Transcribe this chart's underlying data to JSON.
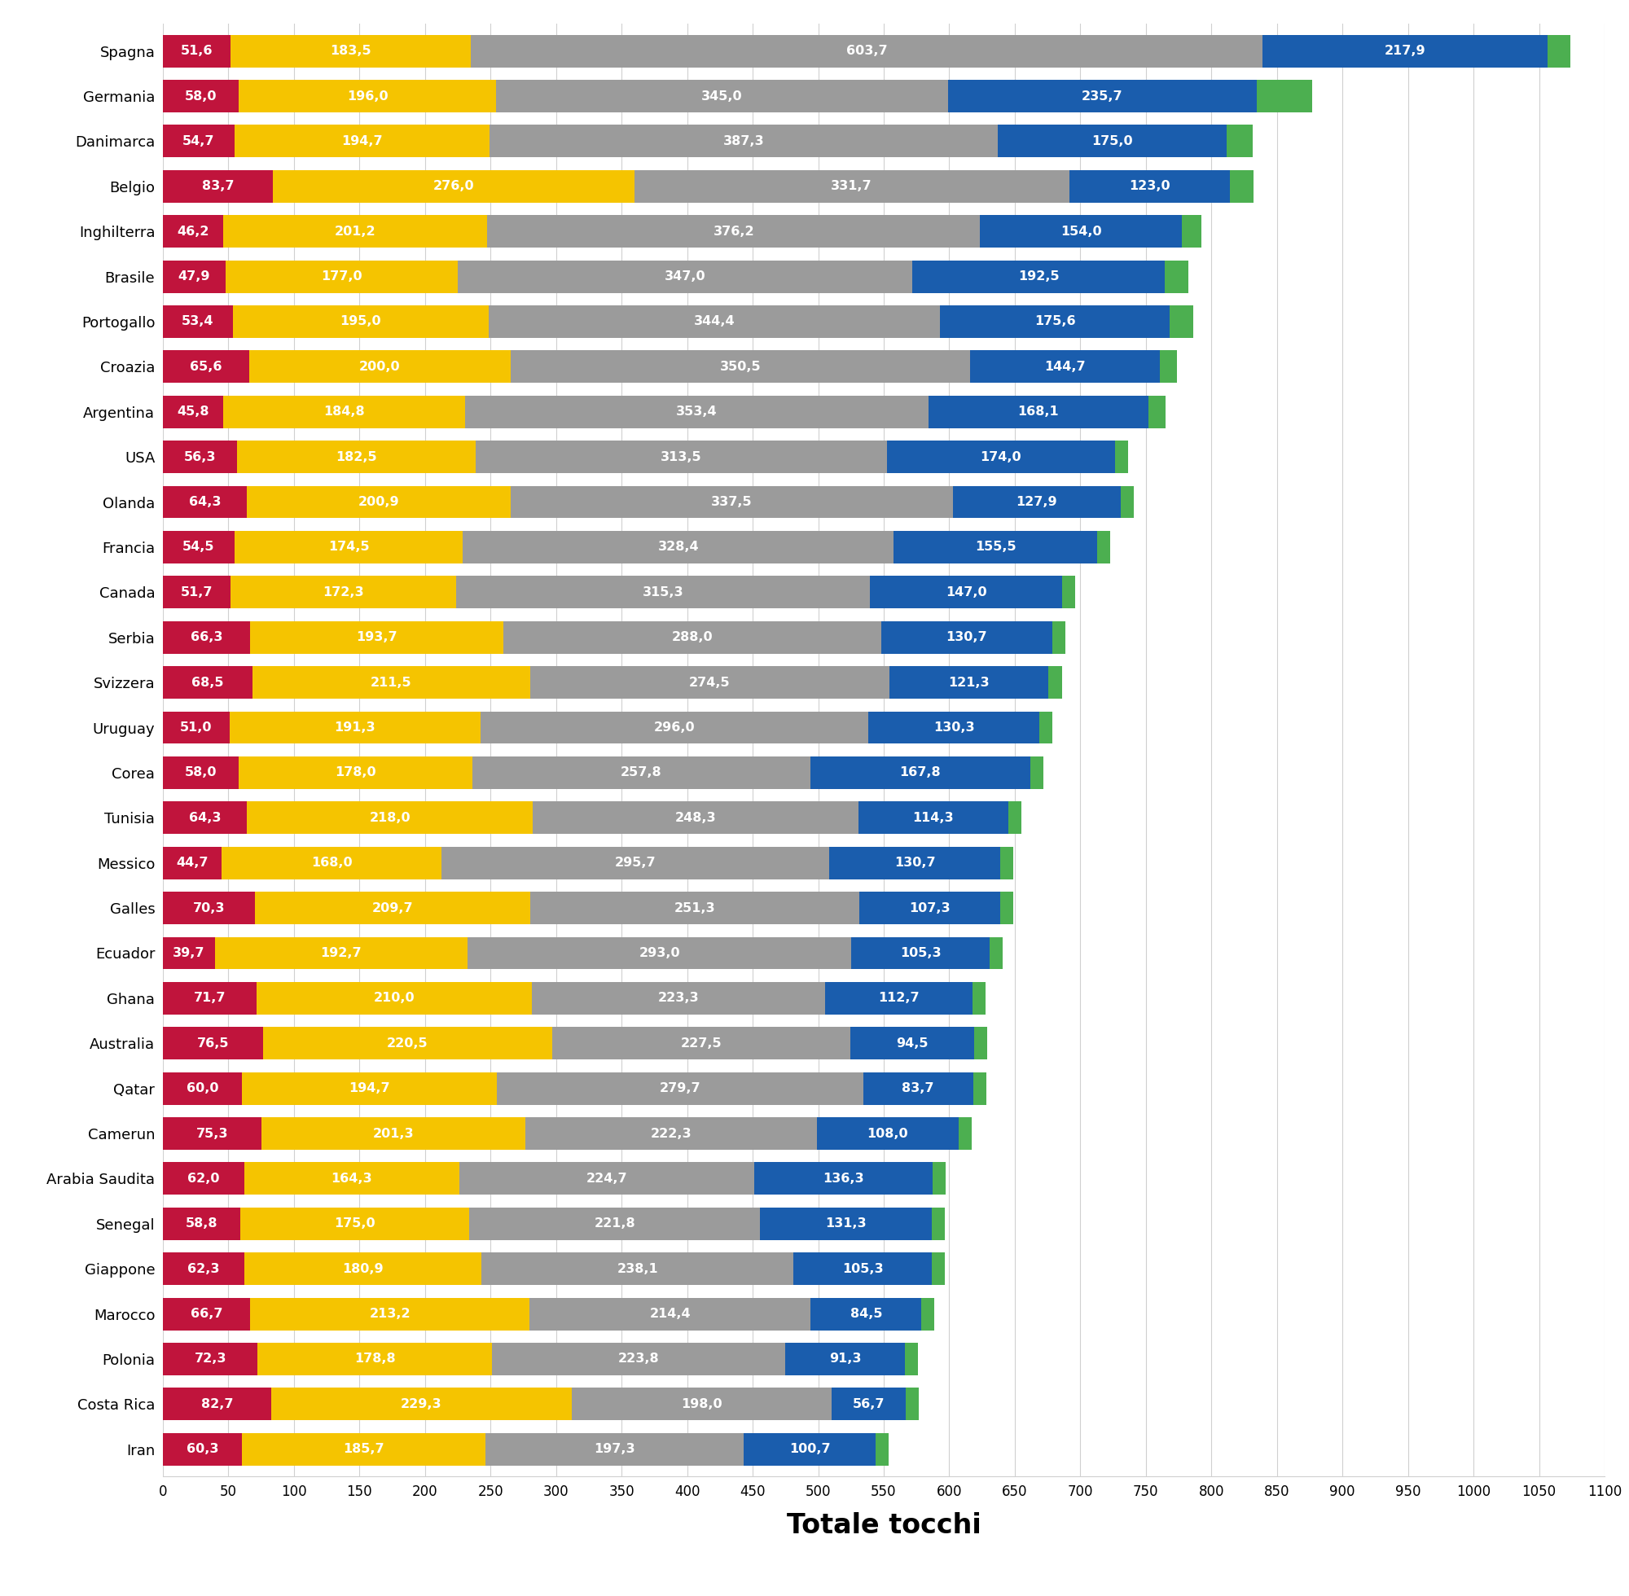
{
  "teams": [
    "Spagna",
    "Germania",
    "Danimarca",
    "Belgio",
    "Inghilterra",
    "Brasile",
    "Portogallo",
    "Croazia",
    "Argentina",
    "USA",
    "Olanda",
    "Francia",
    "Canada",
    "Serbia",
    "Svizzera",
    "Uruguay",
    "Corea",
    "Tunisia",
    "Messico",
    "Galles",
    "Ecuador",
    "Ghana",
    "Australia",
    "Qatar",
    "Camerun",
    "Arabia Saudita",
    "Senegal",
    "Giappone",
    "Marocco",
    "Polonia",
    "Costa Rica",
    "Iran"
  ],
  "red": [
    51.6,
    58.0,
    54.7,
    83.7,
    46.2,
    47.9,
    53.4,
    65.6,
    45.8,
    56.3,
    64.3,
    54.5,
    51.7,
    66.3,
    68.5,
    51.0,
    58.0,
    64.3,
    44.7,
    70.3,
    39.7,
    71.7,
    76.5,
    60.0,
    75.3,
    62.0,
    58.8,
    62.3,
    66.7,
    72.3,
    82.7,
    60.3
  ],
  "yellow": [
    183.5,
    196.0,
    194.7,
    276.0,
    201.2,
    177.0,
    195.0,
    200.0,
    184.8,
    182.5,
    200.9,
    174.5,
    172.3,
    193.7,
    211.5,
    191.3,
    178.0,
    218.0,
    168.0,
    209.7,
    192.7,
    210.0,
    220.5,
    194.7,
    201.3,
    164.3,
    175.0,
    180.9,
    213.2,
    178.8,
    229.3,
    185.7
  ],
  "gray": [
    603.7,
    345.0,
    387.3,
    331.7,
    376.2,
    347.0,
    344.4,
    350.5,
    353.4,
    313.5,
    337.5,
    328.4,
    315.3,
    288.0,
    274.5,
    296.0,
    257.8,
    248.3,
    295.7,
    251.3,
    293.0,
    223.3,
    227.5,
    279.7,
    222.3,
    224.7,
    221.8,
    238.1,
    214.4,
    223.8,
    198.0,
    197.3
  ],
  "blue": [
    217.9,
    235.7,
    175.0,
    123.0,
    154.0,
    192.5,
    175.6,
    144.7,
    168.1,
    174.0,
    127.9,
    155.5,
    147.0,
    130.7,
    121.3,
    130.3,
    167.8,
    114.3,
    130.7,
    107.3,
    105.3,
    112.7,
    94.5,
    83.7,
    108.0,
    136.3,
    131.3,
    105.3,
    84.5,
    91.3,
    56.7,
    100.7
  ],
  "green": [
    17.0,
    42.3,
    20.0,
    18.0,
    15.0,
    18.0,
    18.0,
    13.0,
    13.0,
    10.0,
    10.0,
    10.0,
    10.0,
    10.0,
    10.0,
    10.0,
    10.0,
    10.0,
    10.0,
    10.0,
    10.0,
    10.0,
    10.0,
    10.0,
    10.0,
    10.0,
    10.0,
    10.0,
    10.0,
    10.0,
    10.0,
    10.0
  ],
  "red_color": "#c0143c",
  "yellow_color": "#f5c400",
  "gray_color": "#9b9b9b",
  "blue_color": "#1a5dad",
  "green_color": "#4caf50",
  "xlabel": "Totale tocchi",
  "xlim": [
    0,
    1100
  ],
  "xticks": [
    0,
    50,
    100,
    150,
    200,
    250,
    300,
    350,
    400,
    450,
    500,
    550,
    600,
    650,
    700,
    750,
    800,
    850,
    900,
    950,
    1000,
    1050,
    1100
  ],
  "bar_height": 0.72,
  "background_color": "#ffffff",
  "grid_color": "#d0d0d0",
  "text_fontsize": 11.5,
  "xlabel_fontsize": 24,
  "ytick_fontsize": 13,
  "xtick_fontsize": 12
}
